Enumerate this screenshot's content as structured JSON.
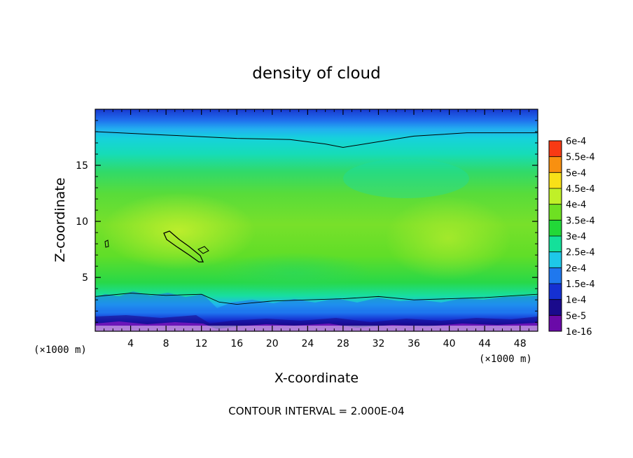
{
  "chart_data": {
    "type": "heatmap",
    "title": "density of cloud",
    "xlabel": "X-coordinate",
    "ylabel": "Z-coordinate",
    "x_unit": "(×1000 m)",
    "y_unit": "(×1000 m)",
    "xlim": [
      0,
      50
    ],
    "ylim": [
      0.2,
      20
    ],
    "x_ticks": [
      "4",
      "8",
      "12",
      "16",
      "20",
      "24",
      "28",
      "32",
      "36",
      "40",
      "44",
      "48"
    ],
    "x_tick_values": [
      4,
      8,
      12,
      16,
      20,
      24,
      28,
      32,
      36,
      40,
      44,
      48
    ],
    "y_ticks": [
      "5",
      "10",
      "15"
    ],
    "y_tick_values": [
      5,
      10,
      15
    ],
    "colorbar": {
      "labels": [
        "1e-16",
        "5e-5",
        "1e-4",
        "1.5e-4",
        "2e-4",
        "2.5e-4",
        "3e-4",
        "3.5e-4",
        "4e-4",
        "4.5e-4",
        "5e-4",
        "5.5e-4",
        "6e-4"
      ],
      "colors": [
        "#6a0aa8",
        "#1a0a8c",
        "#1530d2",
        "#1f78ee",
        "#1ec8e8",
        "#14e09a",
        "#22d838",
        "#6ee022",
        "#c0f028",
        "#f8e018",
        "#f89010",
        "#f83a14",
        "#f47a8c"
      ]
    },
    "contour_interval": "CONTOUR INTERVAL = 2.000E-04",
    "contour_levels": [
      0.0002,
      0.0004
    ],
    "contour_lines": [
      {
        "level": 0.0002,
        "description": "cloud top boundary",
        "x": [
          0,
          8,
          16,
          22,
          26,
          28,
          32,
          36,
          42,
          50
        ],
        "z": [
          18.0,
          17.7,
          17.4,
          17.3,
          16.9,
          16.6,
          17.1,
          17.6,
          17.9,
          17.9
        ]
      },
      {
        "level": 0.0002,
        "description": "cloud base boundary",
        "x": [
          0,
          4,
          8,
          12,
          14,
          16,
          20,
          24,
          28,
          32,
          36,
          40,
          44,
          50
        ],
        "z": [
          3.3,
          3.6,
          3.4,
          3.5,
          2.8,
          2.6,
          2.9,
          3.0,
          3.1,
          3.3,
          3.0,
          3.1,
          3.2,
          3.5
        ]
      }
    ]
  }
}
